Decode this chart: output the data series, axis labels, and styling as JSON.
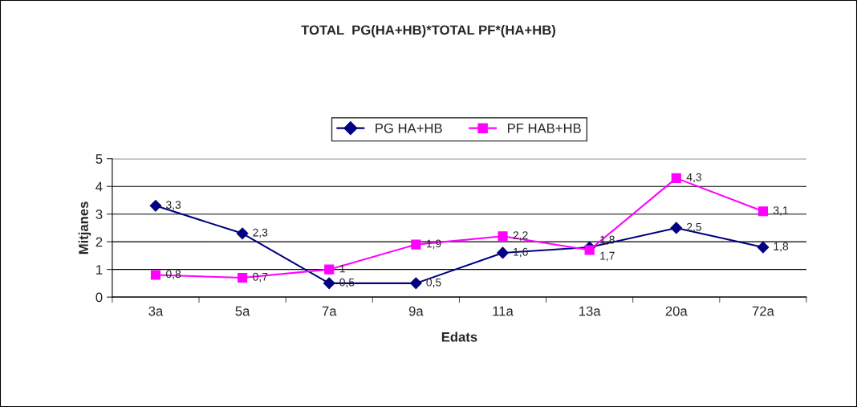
{
  "chart_data": {
    "type": "line",
    "title": "TOTAL  PG(HA+HB)*TOTAL PF*(HA+HB)",
    "xlabel": "Edats",
    "ylabel": "Mitjanes",
    "categories": [
      "3a",
      "5a",
      "7a",
      "9a",
      "11a",
      "13a",
      "20a",
      "72a"
    ],
    "series": [
      {
        "name": "PG HA+HB",
        "color": "#000080",
        "marker": "diamond",
        "values": [
          3.3,
          2.3,
          0.5,
          0.5,
          1.6,
          1.8,
          2.5,
          1.8
        ],
        "value_labels": [
          "3,3",
          "2,3",
          "0,5",
          "0,5",
          "1,6",
          "1,8",
          "2,5",
          "1,8"
        ]
      },
      {
        "name": "PF HAB+HB",
        "color": "#ff00ff",
        "marker": "square",
        "values": [
          0.8,
          0.7,
          1.0,
          1.9,
          2.2,
          1.7,
          4.3,
          3.1
        ],
        "value_labels": [
          "0,8",
          "0,7",
          "1",
          "1,9",
          "2,2",
          "1,7",
          "4,3",
          "3,1"
        ]
      }
    ],
    "ylim": [
      0,
      5
    ],
    "yticks": [
      0,
      1,
      2,
      3,
      4,
      5
    ],
    "grid": "y",
    "legend": "top"
  }
}
